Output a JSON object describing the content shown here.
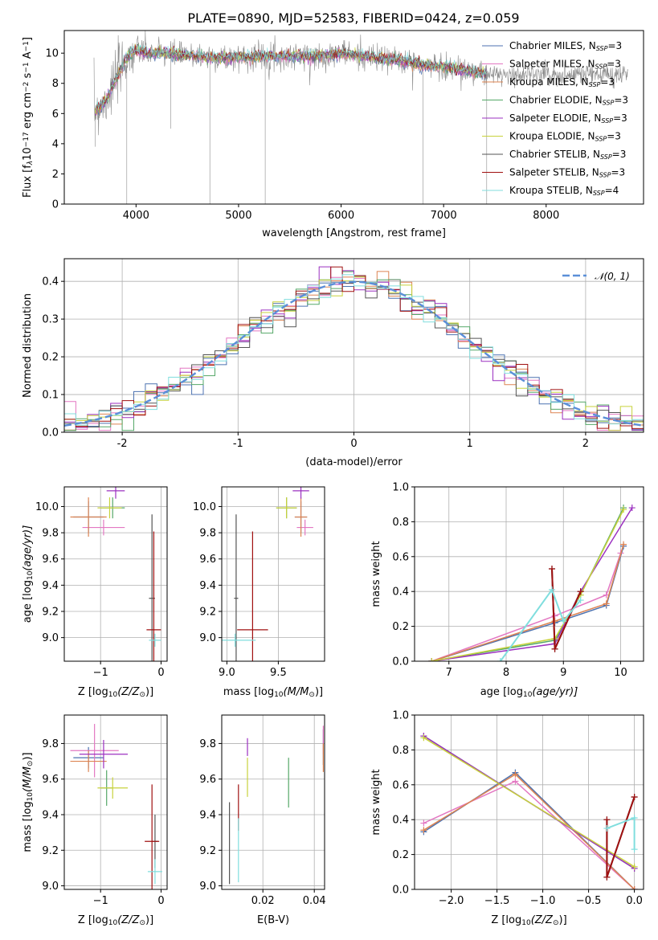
{
  "title": "PLATE=0890, MJD=52583, FIBERID=0424, z=0.059",
  "colors": {
    "Chabrier MILES": "#4c72b0",
    "Salpeter MILES": "#e377c2",
    "Kroupa MILES": "#dd8452",
    "Chabrier ELODIE": "#55a868",
    "Salpeter ELODIE": "#9b30c0",
    "Kroupa ELODIE": "#c8d23c",
    "Chabrier STELIB": "#555555",
    "Salpeter STELIB": "#a01010",
    "Kroupa STELIB": "#80dede",
    "normal": "#5b8fd8"
  },
  "chart_data": [
    {
      "id": "spectrum",
      "type": "line",
      "xlabel": "wavelength [Angstrom, rest frame]",
      "ylabel": "Flux [f",
      "ylabel_mid": "10",
      "ylabel_exp": "−17",
      "ylabel_rest": " erg cm",
      "ylabel_units": [
        "−2",
        " s",
        "−1",
        " A",
        "−1",
        "]"
      ],
      "xlim": [
        3300,
        8950
      ],
      "ylim": [
        0,
        11.5
      ],
      "xticks": [
        4000,
        5000,
        6000,
        7000,
        8000
      ],
      "yticks": [
        0,
        2,
        4,
        6,
        8,
        10
      ],
      "legend": [
        {
          "model": "Chabrier MILES",
          "label": "Chabrier MILES, N",
          "sub": "SSP",
          "tail": "=3"
        },
        {
          "model": "Salpeter MILES",
          "label": "Salpeter MILES, N",
          "sub": "SSP",
          "tail": "=3"
        },
        {
          "model": "Kroupa MILES",
          "label": "Kroupa MILES, N",
          "sub": "SSP",
          "tail": "=3"
        },
        {
          "model": "Chabrier ELODIE",
          "label": "Chabrier ELODIE, N",
          "sub": "SSP",
          "tail": "=3"
        },
        {
          "model": "Salpeter ELODIE",
          "label": "Salpeter ELODIE, N",
          "sub": "SSP",
          "tail": "=3"
        },
        {
          "model": "Kroupa ELODIE",
          "label": "Kroupa ELODIE, N",
          "sub": "SSP",
          "tail": "=3"
        },
        {
          "model": "Chabrier STELIB",
          "label": "Chabrier STELIB, N",
          "sub": "SSP",
          "tail": "=3"
        },
        {
          "model": "Salpeter STELIB",
          "label": "Salpeter STELIB, N",
          "sub": "SSP",
          "tail": "=3"
        },
        {
          "model": "Kroupa STELIB",
          "label": "Kroupa STELIB, N",
          "sub": "SSP",
          "tail": "=4"
        }
      ],
      "continuum": {
        "x": [
          3600,
          3700,
          3800,
          3900,
          4000,
          4100,
          4200,
          4400,
          4600,
          4800,
          5000,
          5200,
          5500,
          5800,
          6000,
          6300,
          6600,
          6800,
          7000,
          7200,
          7420
        ],
        "y": [
          6.2,
          6.8,
          8.2,
          9.6,
          10.2,
          10.0,
          10.0,
          9.9,
          9.8,
          9.7,
          9.7,
          9.8,
          9.8,
          9.8,
          10.0,
          9.7,
          9.5,
          9.2,
          9.1,
          8.9,
          8.6
        ]
      },
      "spikes": [
        {
          "x": 3600,
          "y": 3.8
        },
        {
          "x": 3910,
          "y": 0.0
        },
        {
          "x": 4340,
          "y": 5.0
        },
        {
          "x": 4720,
          "y": 0.0
        },
        {
          "x": 5260,
          "y": 0.0
        },
        {
          "x": 6800,
          "y": 0.0
        },
        {
          "x": 7420,
          "y": 0.0
        }
      ]
    },
    {
      "id": "residuals",
      "type": "step",
      "xlabel": "(data-model)/error",
      "ylabel": "Normed distribution",
      "xlim": [
        -2.5,
        2.5
      ],
      "ylim": [
        0,
        0.46
      ],
      "xticks": [
        -2,
        -1,
        0,
        1,
        2
      ],
      "yticks": [
        0.0,
        0.1,
        0.2,
        0.3,
        0.4
      ],
      "yticklabels": [
        "0.0",
        "0.1",
        "0.2",
        "0.3",
        "0.4"
      ],
      "legend_label": "𝒩(0, 1)",
      "bin_start": -2.5,
      "bin_width": 0.1
    },
    {
      "id": "age-vs-Z",
      "type": "errorbar",
      "xlabel": "Z [log",
      "xlabel_sub": "10",
      "xlabel_rest": "(Z/Z",
      "xlabel_sun": "⊙",
      "xlabel_end": ")]",
      "ylabel": "age  [log",
      "ylabel_sub": "10",
      "ylabel_rest": "(age/yr)]",
      "xlim": [
        -1.6,
        0.1
      ],
      "ylim": [
        8.82,
        10.15
      ],
      "xticks": [
        -1,
        0
      ],
      "xticklabels": [
        "−1",
        "0"
      ],
      "yticks": [
        9.0,
        9.2,
        9.4,
        9.6,
        9.8,
        10.0
      ],
      "yticklabels": [
        "9.0",
        "9.2",
        "9.4",
        "9.6",
        "9.8",
        "10.0"
      ],
      "points": [
        {
          "model": "Chabrier MILES",
          "x": -1.2,
          "y": 9.92,
          "xerr": 0.25,
          "yerr": 0.12
        },
        {
          "model": "Salpeter MILES",
          "x": -0.95,
          "y": 9.84,
          "xerr": 0.35,
          "yerr": 0.06
        },
        {
          "model": "Kroupa MILES",
          "x": -1.2,
          "y": 9.92,
          "xerr": 0.3,
          "yerr": 0.15
        },
        {
          "model": "Chabrier ELODIE",
          "x": -0.8,
          "y": 9.99,
          "xerr": 0.2,
          "yerr": 0.08
        },
        {
          "model": "Salpeter ELODIE",
          "x": -0.75,
          "y": 10.12,
          "xerr": 0.15,
          "yerr": 0.06
        },
        {
          "model": "Kroupa ELODIE",
          "x": -0.85,
          "y": 9.99,
          "xerr": 0.2,
          "yerr": 0.08
        },
        {
          "model": "Chabrier STELIB",
          "x": -0.15,
          "y": 9.3,
          "xerr": 0.05,
          "yerr": 0.64
        },
        {
          "model": "Salpeter STELIB",
          "x": -0.12,
          "y": 9.06,
          "xerr": 0.12,
          "yerr": 0.75
        },
        {
          "model": "Kroupa STELIB",
          "x": -0.1,
          "y": 8.98,
          "xerr": 0.1,
          "yerr": 0.05
        }
      ]
    },
    {
      "id": "age-vs-mass",
      "type": "errorbar",
      "xlabel": "mass [log",
      "xlabel_sub": "10",
      "xlabel_rest": "(M/M",
      "xlabel_sun": "⊙",
      "xlabel_end": ")]",
      "xlim": [
        8.95,
        9.95
      ],
      "ylim": [
        8.82,
        10.15
      ],
      "xticks": [
        9.0,
        9.5
      ],
      "xticklabels": [
        "9.0",
        "9.5"
      ],
      "yticks": [
        9.0,
        9.2,
        9.4,
        9.6,
        9.8,
        10.0
      ],
      "yticklabels": [
        "9.0",
        "9.2",
        "9.4",
        "9.6",
        "9.8",
        "10.0"
      ],
      "points": [
        {
          "model": "Chabrier MILES",
          "x": 9.72,
          "y": 9.92,
          "xerr": 0.06,
          "yerr": 0.12
        },
        {
          "model": "Salpeter MILES",
          "x": 9.76,
          "y": 9.84,
          "xerr": 0.08,
          "yerr": 0.06
        },
        {
          "model": "Kroupa MILES",
          "x": 9.72,
          "y": 9.92,
          "xerr": 0.06,
          "yerr": 0.15
        },
        {
          "model": "Chabrier ELODIE",
          "x": 9.58,
          "y": 9.99,
          "xerr": 0.1,
          "yerr": 0.08
        },
        {
          "model": "Salpeter ELODIE",
          "x": 9.72,
          "y": 10.12,
          "xerr": 0.08,
          "yerr": 0.06
        },
        {
          "model": "Kroupa ELODIE",
          "x": 9.58,
          "y": 9.99,
          "xerr": 0.1,
          "yerr": 0.08
        },
        {
          "model": "Chabrier STELIB",
          "x": 9.09,
          "y": 9.3,
          "xerr": 0.02,
          "yerr": 0.64
        },
        {
          "model": "Salpeter STELIB",
          "x": 9.25,
          "y": 9.06,
          "xerr": 0.15,
          "yerr": 0.75
        },
        {
          "model": "Kroupa STELIB",
          "x": 9.08,
          "y": 8.98,
          "xerr": 0.2,
          "yerr": 0.05
        }
      ]
    },
    {
      "id": "weight-vs-age",
      "type": "line",
      "xlabel": "age  [log",
      "xlabel_sub": "10",
      "xlabel_rest": "(age/yr)]",
      "ylabel": "mass weight",
      "xlim": [
        6.4,
        10.4
      ],
      "ylim": [
        0,
        1
      ],
      "xticks": [
        7,
        8,
        9,
        10
      ],
      "yticks": [
        0.0,
        0.2,
        0.4,
        0.6,
        0.8,
        1.0
      ],
      "yticklabels": [
        "0.0",
        "0.2",
        "0.4",
        "0.6",
        "0.8",
        "1.0"
      ],
      "series": [
        {
          "model": "Chabrier MILES",
          "x": [
            6.7,
            8.85,
            9.75,
            10.05
          ],
          "y": [
            0.0,
            0.22,
            0.32,
            0.66
          ]
        },
        {
          "model": "Salpeter MILES",
          "x": [
            6.7,
            8.85,
            9.75,
            10.0
          ],
          "y": [
            0.0,
            0.26,
            0.38,
            0.62
          ]
        },
        {
          "model": "Kroupa MILES",
          "x": [
            6.7,
            8.85,
            9.75,
            10.05
          ],
          "y": [
            0.0,
            0.23,
            0.33,
            0.67
          ]
        },
        {
          "model": "Chabrier ELODIE",
          "x": [
            6.7,
            8.85,
            9.3,
            10.05
          ],
          "y": [
            0.0,
            0.12,
            0.38,
            0.88
          ]
        },
        {
          "model": "Salpeter ELODIE",
          "x": [
            6.7,
            8.85,
            9.3,
            10.2
          ],
          "y": [
            0.0,
            0.1,
            0.4,
            0.88
          ]
        },
        {
          "model": "Kroupa ELODIE",
          "x": [
            6.7,
            8.85,
            9.3,
            10.05
          ],
          "y": [
            0.0,
            0.13,
            0.38,
            0.87
          ]
        },
        {
          "model": "Chabrier STELIB",
          "x": [
            8.8,
            8.85,
            9.3
          ],
          "y": [
            0.53,
            0.07,
            0.4
          ]
        },
        {
          "model": "Salpeter STELIB",
          "x": [
            8.8,
            8.85,
            9.3
          ],
          "y": [
            0.53,
            0.07,
            0.4
          ]
        },
        {
          "model": "Kroupa STELIB",
          "x": [
            7.9,
            8.8,
            9.0,
            9.3
          ],
          "y": [
            0.0,
            0.41,
            0.23,
            0.35
          ]
        }
      ]
    },
    {
      "id": "mass-vs-Z",
      "type": "errorbar",
      "xlabel": "Z [log",
      "xlabel_sub": "10",
      "xlabel_rest": "(Z/Z",
      "xlabel_sun": "⊙",
      "xlabel_end": ")]",
      "ylabel": "mass [log",
      "ylabel_sub": "10",
      "ylabel_rest": "(M/M",
      "ylabel_sun": "⊙",
      "ylabel_end": ")]",
      "xlim": [
        -1.6,
        0.1
      ],
      "ylim": [
        8.98,
        9.96
      ],
      "xticks": [
        -1,
        0
      ],
      "xticklabels": [
        "−1",
        "0"
      ],
      "yticks": [
        9.0,
        9.2,
        9.4,
        9.6,
        9.8
      ],
      "yticklabels": [
        "9.0",
        "9.2",
        "9.4",
        "9.6",
        "9.8"
      ],
      "points": [
        {
          "model": "Chabrier MILES",
          "x": -1.2,
          "y": 9.72,
          "xerr": 0.25,
          "yerr": 0.06
        },
        {
          "model": "Salpeter MILES",
          "x": -1.1,
          "y": 9.76,
          "xerr": 0.4,
          "yerr": 0.15
        },
        {
          "model": "Kroupa MILES",
          "x": -1.2,
          "y": 9.7,
          "xerr": 0.3,
          "yerr": 0.06
        },
        {
          "model": "Chabrier ELODIE",
          "x": -0.9,
          "y": 9.55,
          "xerr": 0.1,
          "yerr": 0.1
        },
        {
          "model": "Salpeter ELODIE",
          "x": -0.95,
          "y": 9.74,
          "xerr": 0.4,
          "yerr": 0.08
        },
        {
          "model": "Kroupa ELODIE",
          "x": -0.8,
          "y": 9.55,
          "xerr": 0.25,
          "yerr": 0.06
        },
        {
          "model": "Chabrier STELIB",
          "x": -0.1,
          "y": 9.25,
          "xerr": 0.05,
          "yerr": 0.15
        },
        {
          "model": "Salpeter STELIB",
          "x": -0.15,
          "y": 9.25,
          "xerr": 0.12,
          "yerr": 0.32
        },
        {
          "model": "Kroupa STELIB",
          "x": -0.1,
          "y": 9.08,
          "xerr": 0.12,
          "yerr": 0.07
        }
      ]
    },
    {
      "id": "mass-vs-EBV",
      "type": "errorbar",
      "xlabel": "E(B-V)",
      "xlim": [
        0.004,
        0.044
      ],
      "ylim": [
        8.98,
        9.96
      ],
      "xticks": [
        0.02,
        0.04
      ],
      "xticklabels": [
        "0.02",
        "0.04"
      ],
      "yticks": [
        9.0,
        9.2,
        9.4,
        9.6,
        9.8
      ],
      "yticklabels": [
        "9.0",
        "9.2",
        "9.4",
        "9.6",
        "9.8"
      ],
      "points": [
        {
          "model": "Chabrier MILES",
          "x": 0.0435,
          "y": 9.78,
          "xerr": 0.0,
          "yerr": 0.1
        },
        {
          "model": "Salpeter MILES",
          "x": 0.0435,
          "y": 9.82,
          "xerr": 0.0,
          "yerr": 0.08
        },
        {
          "model": "Kroupa MILES",
          "x": 0.0435,
          "y": 9.72,
          "xerr": 0.0,
          "yerr": 0.08
        },
        {
          "model": "Chabrier ELODIE",
          "x": 0.03,
          "y": 9.58,
          "xerr": 0.0,
          "yerr": 0.14
        },
        {
          "model": "Salpeter ELODIE",
          "x": 0.014,
          "y": 9.78,
          "xerr": 0.0,
          "yerr": 0.05
        },
        {
          "model": "Kroupa ELODIE",
          "x": 0.014,
          "y": 9.61,
          "xerr": 0.0,
          "yerr": 0.11
        },
        {
          "model": "Chabrier STELIB",
          "x": 0.007,
          "y": 9.24,
          "xerr": 0.0,
          "yerr": 0.23
        },
        {
          "model": "Salpeter STELIB",
          "x": 0.0105,
          "y": 9.44,
          "xerr": 0.0,
          "yerr": 0.13
        },
        {
          "model": "Kroupa STELIB",
          "x": 0.0105,
          "y": 9.2,
          "xerr": 0.0,
          "yerr": 0.18
        }
      ]
    },
    {
      "id": "weight-vs-Z",
      "type": "line",
      "xlabel": "Z [log",
      "xlabel_sub": "10",
      "xlabel_rest": "(Z/Z",
      "xlabel_sun": "⊙",
      "xlabel_end": ")]",
      "ylabel": "mass weight",
      "xlim": [
        -2.4,
        0.1
      ],
      "ylim": [
        0,
        1
      ],
      "xticks": [
        -2.0,
        -1.5,
        -1.0,
        -0.5,
        0.0
      ],
      "xticklabels": [
        "−2.0",
        "−1.5",
        "−1.0",
        "−0.5",
        "0.0"
      ],
      "yticks": [
        0.0,
        0.2,
        0.4,
        0.6,
        0.8,
        1.0
      ],
      "yticklabels": [
        "0.0",
        "0.2",
        "0.4",
        "0.6",
        "0.8",
        "1.0"
      ],
      "series": [
        {
          "model": "Chabrier MILES",
          "x": [
            -2.3,
            -1.3,
            0.0
          ],
          "y": [
            0.33,
            0.67,
            0.0
          ]
        },
        {
          "model": "Salpeter MILES",
          "x": [
            -2.3,
            -1.3,
            0.0
          ],
          "y": [
            0.38,
            0.62,
            0.0
          ]
        },
        {
          "model": "Kroupa MILES",
          "x": [
            -2.3,
            -1.3,
            0.0
          ],
          "y": [
            0.34,
            0.66,
            0.0
          ]
        },
        {
          "model": "Chabrier ELODIE",
          "x": [
            -2.3,
            0.0
          ],
          "y": [
            0.88,
            0.12
          ]
        },
        {
          "model": "Salpeter ELODIE",
          "x": [
            -2.3,
            0.0
          ],
          "y": [
            0.88,
            0.12
          ]
        },
        {
          "model": "Kroupa ELODIE",
          "x": [
            -2.3,
            0.0
          ],
          "y": [
            0.87,
            0.13
          ]
        },
        {
          "model": "Chabrier STELIB",
          "x": [
            -0.3,
            -0.3,
            0.0
          ],
          "y": [
            0.4,
            0.07,
            0.53
          ]
        },
        {
          "model": "Salpeter STELIB",
          "x": [
            -0.3,
            -0.3,
            0.0
          ],
          "y": [
            0.4,
            0.07,
            0.53
          ]
        },
        {
          "model": "Kroupa STELIB",
          "x": [
            -0.3,
            0.0,
            0.0
          ],
          "y": [
            0.35,
            0.41,
            0.23
          ]
        }
      ]
    }
  ]
}
